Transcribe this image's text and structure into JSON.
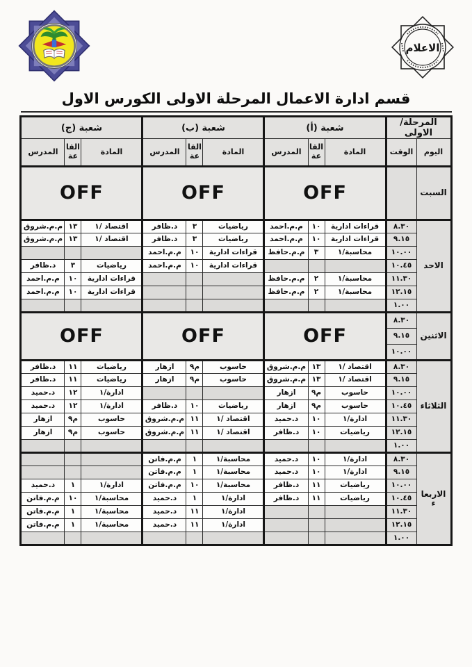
{
  "title": "قسم ادارة الاعمال المرحلة الاولى الكورس الاول",
  "stamp": {
    "label": "الاعلام"
  },
  "logo": {
    "name": "university-emblem"
  },
  "table": {
    "stage_header": "المرحلة/الاولى",
    "sections": [
      "شعبة (أ)",
      "شعبة (ب)",
      "شعبة (ج)"
    ],
    "col_headers": {
      "day": "اليوم",
      "time": "الوقت",
      "subject": "المادة",
      "hall": "القا عة",
      "teacher": "المدرس"
    },
    "off_label": "OFF",
    "days": [
      {
        "name": "السبت",
        "kind": "off-day",
        "rows": [
          {
            "time": ""
          }
        ]
      },
      {
        "name": "الاحد",
        "kind": "normal",
        "rows": [
          {
            "time": "٨.٣٠",
            "cells": [
              [
                "قراءات ادارية",
                "١٠",
                "م.م.احمد"
              ],
              [
                "رياضيات",
                "٣",
                "د.ظافر"
              ],
              [
                "اقتصاد /١",
                "١٣",
                "م.م.شروق"
              ]
            ]
          },
          {
            "time": "٩.١٥",
            "cells": [
              [
                "قراءات ادارية",
                "١٠",
                "م.م.احمد"
              ],
              [
                "رياضيات",
                "٣",
                "د.ظافر"
              ],
              [
                "اقتصاد /١",
                "١٣",
                "م.م.شروق"
              ]
            ]
          },
          {
            "time": "١٠.٠٠",
            "cells": [
              [
                "محاسبة/١",
                "٣",
                "م.م.حافظ"
              ],
              [
                "قراءات ادارية",
                "١٠",
                "م.م.احمد"
              ],
              null
            ]
          },
          {
            "time": "١٠.٤٥",
            "cells": [
              null,
              [
                "قراءات ادارية",
                "١٠",
                "م.م.احمد"
              ],
              [
                "رياضيات",
                "٣",
                "د.ظافر"
              ]
            ]
          },
          {
            "time": "١١.٣٠",
            "cells": [
              [
                "محاسبة/١",
                "٢",
                "م.م.حافظ"
              ],
              null,
              [
                "قراءات ادارية",
                "١٠",
                "م.م.احمد"
              ]
            ]
          },
          {
            "time": "١٢.١٥",
            "cells": [
              [
                "محاسبة/١",
                "٢",
                "م.م.حافظ"
              ],
              null,
              [
                "قراءات ادارية",
                "١٠",
                "م.م.احمد"
              ]
            ]
          },
          {
            "time": "١.٠٠",
            "cells": [
              null,
              null,
              null
            ]
          }
        ]
      },
      {
        "name": "الاثنين",
        "kind": "off-block",
        "rows": [
          {
            "time": "٨.٣٠"
          },
          {
            "time": "٩.١٥"
          },
          {
            "time": "١٠.٠٠"
          }
        ]
      },
      {
        "name": "الثلاثاء",
        "kind": "normal",
        "rows": [
          {
            "time": "٨.٣٠",
            "cells": [
              [
                "اقتصاد /١",
                "١٣",
                "م.م.شروق"
              ],
              [
                "حاسوب",
                "م٩",
                "ازهار"
              ],
              [
                "رياضيات",
                "١١",
                "د.ظافر"
              ]
            ]
          },
          {
            "time": "٩.١٥",
            "cells": [
              [
                "اقتصاد /١",
                "١٣",
                "م.م.شروق"
              ],
              [
                "حاسوب",
                "م٩",
                "ازهار"
              ],
              [
                "رياضيات",
                "١١",
                "د.ظافر"
              ]
            ]
          },
          {
            "time": "١٠.٠٠",
            "cells": [
              [
                "حاسوب",
                "م٩",
                "ازهار"
              ],
              null,
              [
                "ادارة/١",
                "١٢",
                "د.حميد"
              ]
            ]
          },
          {
            "time": "١٠.٤٥",
            "cells": [
              [
                "حاسوب",
                "م٩",
                "ازهار"
              ],
              [
                "رياضيات",
                "١٠",
                "د.ظافر"
              ],
              [
                "ادارة/١",
                "١٢",
                "د.حميد"
              ]
            ]
          },
          {
            "time": "١١.٣٠",
            "cells": [
              [
                "ادارة/١",
                "١٠",
                "د.حميد"
              ],
              [
                "اقتصاد /١",
                "١١",
                "م.م.شروق"
              ],
              [
                "حاسوب",
                "م٩",
                "ازهار"
              ]
            ]
          },
          {
            "time": "١٢.١٥",
            "cells": [
              [
                "رياضيات",
                "١٠",
                "د.ظافر"
              ],
              [
                "اقتصاد /١",
                "١١",
                "م.م.شروق"
              ],
              [
                "حاسوب",
                "م٩",
                "ازهار"
              ]
            ]
          },
          {
            "time": "١.٠٠",
            "cells": [
              null,
              null,
              null
            ]
          }
        ]
      },
      {
        "name": "الاربعا ء",
        "kind": "normal",
        "rows": [
          {
            "time": "٨.٣٠",
            "cells": [
              [
                "ادارة/١",
                "١٠",
                "د.حميد"
              ],
              [
                "محاسبة/١",
                "١",
                "م.م.فاتن"
              ],
              null
            ]
          },
          {
            "time": "٩.١٥",
            "cells": [
              [
                "ادارة/١",
                "١٠",
                "د.حميد"
              ],
              [
                "محاسبة/١",
                "١",
                "م.م.فاتن"
              ],
              null
            ]
          },
          {
            "time": "١٠.٠٠",
            "cells": [
              [
                "رياضيات",
                "١١",
                "د.ظافر"
              ],
              [
                "محاسبة/١",
                "١٠",
                "م.م.فاتن"
              ],
              [
                "ادارة/١",
                "١",
                "د.حميد"
              ]
            ]
          },
          {
            "time": "١٠.٤٥",
            "cells": [
              [
                "رياضيات",
                "١١",
                "د.ظافر"
              ],
              [
                "ادارة/١",
                "١",
                "د.حميد"
              ],
              [
                "محاسبة/١",
                "١٠",
                "م.م.فاتن"
              ]
            ]
          },
          {
            "time": "١١.٣٠",
            "cells": [
              null,
              [
                "ادارة/١",
                "١١",
                "د.حميد"
              ],
              [
                "محاسبة/١",
                "١",
                "م.م.فاتن"
              ]
            ]
          },
          {
            "time": "١٢.١٥",
            "cells": [
              null,
              [
                "ادارة/١",
                "١١",
                "د.حميد"
              ],
              [
                "محاسبة/١",
                "١",
                "م.م.فاتن"
              ]
            ]
          },
          {
            "time": "١.٠٠",
            "cells": [
              null,
              null,
              null
            ]
          }
        ]
      }
    ]
  }
}
